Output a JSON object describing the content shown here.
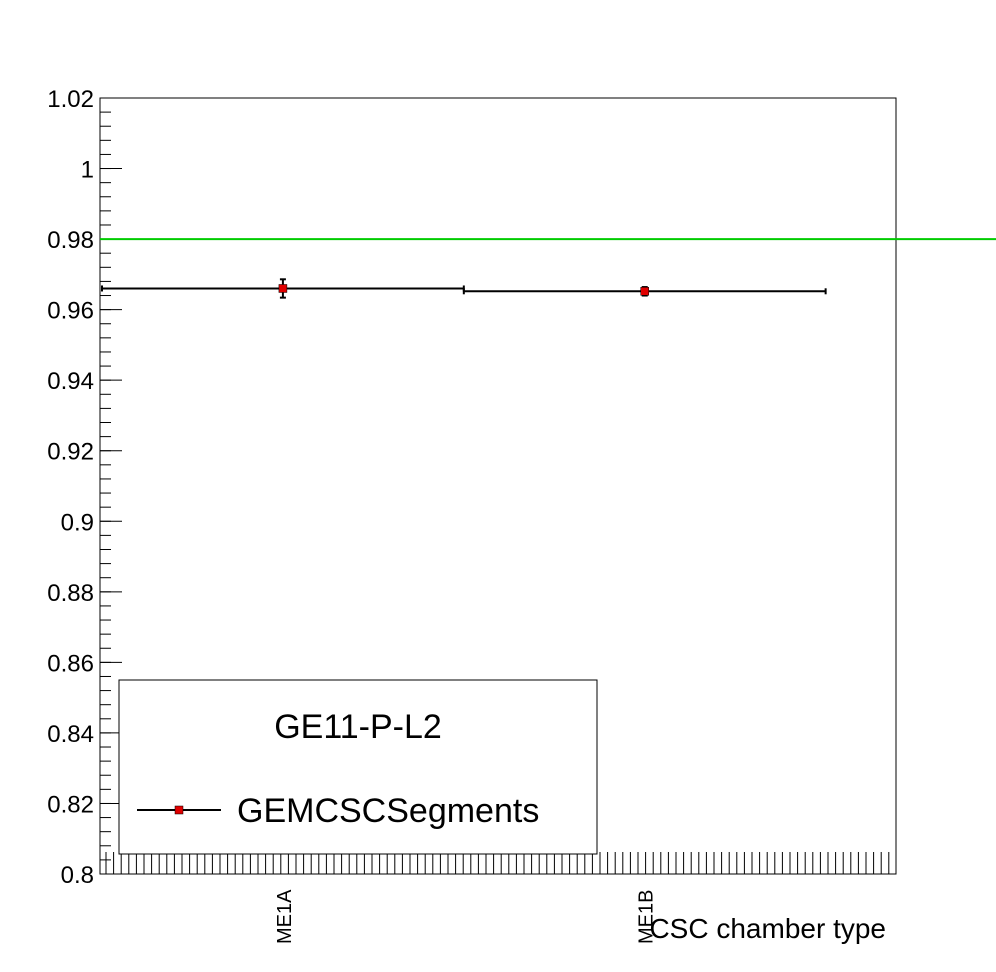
{
  "chart_data": {
    "type": "scatter",
    "title": "",
    "xlabel": "CSC chamber type",
    "ylabel": "",
    "categories": [
      "ME1A",
      "ME1B"
    ],
    "ylim": [
      0.8,
      1.02
    ],
    "y_ticks": [
      "0.8",
      "0.82",
      "0.84",
      "0.86",
      "0.88",
      "0.9",
      "0.92",
      "0.94",
      "0.96",
      "0.98",
      "1",
      "1.02"
    ],
    "y_tick_values": [
      0.8,
      0.82,
      0.84,
      0.86,
      0.88,
      0.9,
      0.92,
      0.94,
      0.96,
      0.98,
      1.0,
      1.02
    ],
    "series": [
      {
        "name": "GEMCSCSegments",
        "color": "#e00000",
        "values": [
          0.966,
          0.9652
        ],
        "yerr": [
          0.0026,
          0.0012
        ]
      }
    ],
    "reference_line": {
      "value": 0.98,
      "color": "#00cc00"
    },
    "legend": {
      "header": "GE11-P-L2",
      "entries": [
        "GEMCSCSegments"
      ],
      "placement": "bottom-left"
    },
    "grid": false
  }
}
